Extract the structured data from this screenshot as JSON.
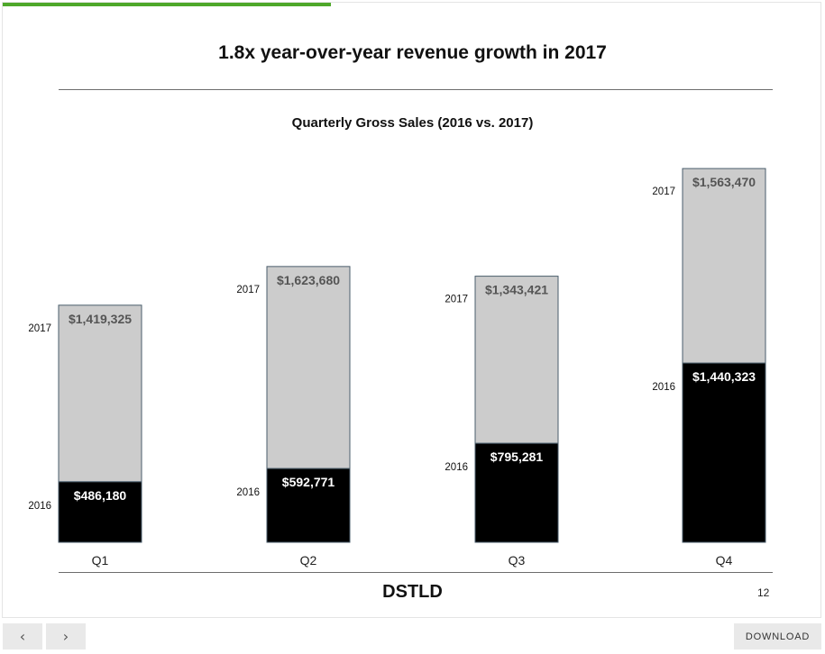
{
  "slide": {
    "title": "1.8x year-over-year revenue growth in 2017",
    "brand": "DSTLD",
    "page_number": "12",
    "progress": 0.4
  },
  "colors": {
    "accent": "#4ea82a",
    "bar_2016": "#000000",
    "bar_2017": "#cccccc",
    "bar_border": "#4a5d6b",
    "label_2017": "#555555"
  },
  "chart_data": {
    "type": "bar",
    "stacked": true,
    "title": "Quarterly Gross Sales (2016 vs. 2017)",
    "categories": [
      "Q1",
      "Q2",
      "Q3",
      "Q4"
    ],
    "series": [
      {
        "name": "2016",
        "values": [
          486180,
          592771,
          795281,
          1440323
        ],
        "labels": [
          "$486,180",
          "$592,771",
          "$795,281",
          "$1,440,323"
        ]
      },
      {
        "name": "2017",
        "values": [
          1419325,
          1623680,
          1343421,
          1563470
        ],
        "labels": [
          "$1,419,325",
          "$1,623,680",
          "$1,343,421",
          "$1,563,470"
        ]
      }
    ],
    "ylim": [
      0,
      3200000
    ],
    "grid": false,
    "legend": "inline-left"
  },
  "navigation": {
    "prev_icon": "chevron-left-icon",
    "next_icon": "chevron-right-icon",
    "prev_glyph": "‹",
    "next_glyph": "›",
    "download_label": "DOWNLOAD"
  }
}
